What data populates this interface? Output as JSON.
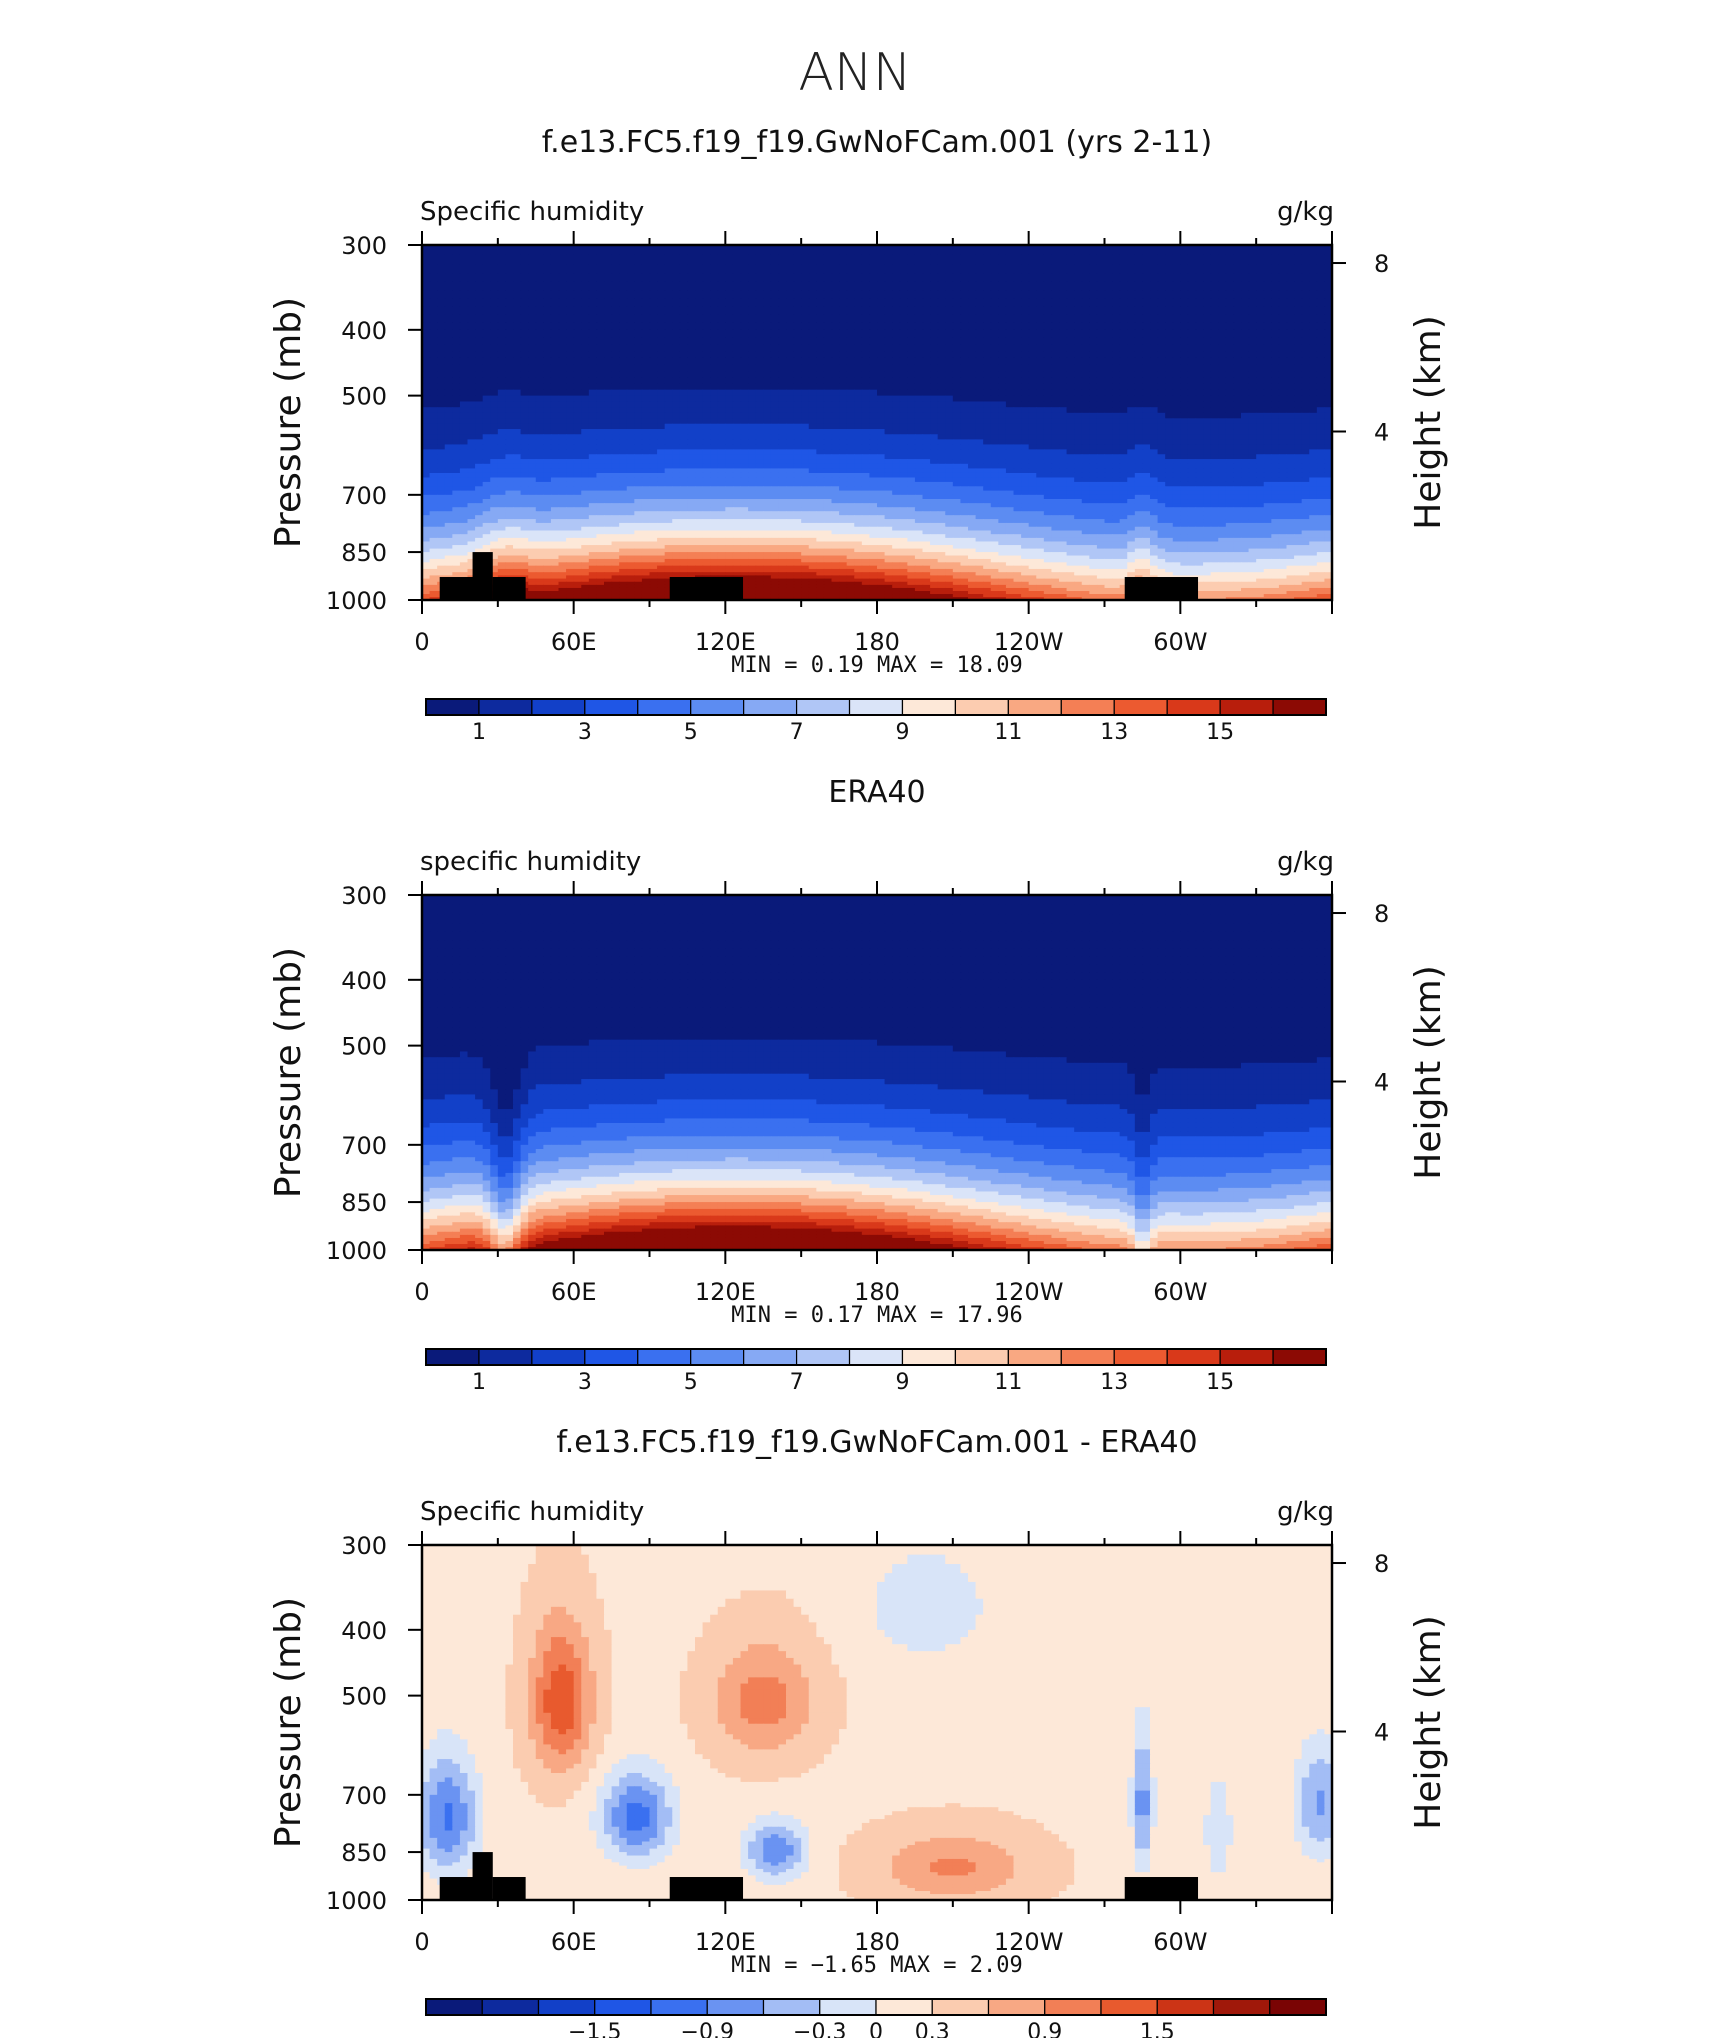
{
  "figure": {
    "season": "ANN"
  },
  "chart_data": [
    {
      "type": "heatmap",
      "title": "f.e13.FC5.f19_f19.GwNoFCam.001 (yrs 2-11)",
      "variable_label": "Specific humidity",
      "units": "g/kg",
      "ylabel": "Pressure (mb)",
      "ylabel_right": "Height (km)",
      "x_ticks": [
        "0",
        "60E",
        "120E",
        "180",
        "120W",
        "60W"
      ],
      "x_tick_positions_deg": [
        0,
        60,
        120,
        180,
        240,
        300
      ],
      "xlim_deg": [
        0,
        360
      ],
      "y_ticks": [
        "300",
        "400",
        "500",
        "700",
        "850",
        "1000"
      ],
      "y_tick_values": [
        300,
        400,
        500,
        700,
        850,
        1000
      ],
      "ylim": [
        300,
        1000
      ],
      "y_right_ticks": [
        "4",
        "8"
      ],
      "y_right_tick_values_km": [
        4,
        8
      ],
      "stats_text": "MIN =    0.19  MAX =   18.09",
      "min": 0.19,
      "max": 18.09,
      "colorbar_levels": [
        0,
        1,
        2,
        3,
        4,
        5,
        6,
        7,
        8,
        9,
        10,
        11,
        12,
        13,
        14,
        15,
        16
      ],
      "colorbar_labels": [
        "1",
        "3",
        "5",
        "7",
        "9",
        "11",
        "13",
        "15"
      ],
      "orography_mask": true
    },
    {
      "type": "heatmap",
      "title": "ERA40",
      "variable_label": "specific humidity",
      "units": "g/kg",
      "ylabel": "Pressure (mb)",
      "ylabel_right": "Height (km)",
      "x_ticks": [
        "0",
        "60E",
        "120E",
        "180",
        "120W",
        "60W"
      ],
      "x_tick_positions_deg": [
        0,
        60,
        120,
        180,
        240,
        300
      ],
      "xlim_deg": [
        0,
        360
      ],
      "y_ticks": [
        "300",
        "400",
        "500",
        "700",
        "850",
        "1000"
      ],
      "y_tick_values": [
        300,
        400,
        500,
        700,
        850,
        1000
      ],
      "ylim": [
        300,
        1000
      ],
      "y_right_ticks": [
        "4",
        "8"
      ],
      "y_right_tick_values_km": [
        4,
        8
      ],
      "stats_text": "MIN =    0.17  MAX =   17.96",
      "min": 0.17,
      "max": 17.96,
      "colorbar_levels": [
        0,
        1,
        2,
        3,
        4,
        5,
        6,
        7,
        8,
        9,
        10,
        11,
        12,
        13,
        14,
        15,
        16
      ],
      "colorbar_labels": [
        "1",
        "3",
        "5",
        "7",
        "9",
        "11",
        "13",
        "15"
      ],
      "orography_mask": false
    },
    {
      "type": "heatmap",
      "title": "f.e13.FC5.f19_f19.GwNoFCam.001 - ERA40",
      "variable_label": "Specific humidity",
      "units": "g/kg",
      "ylabel": "Pressure (mb)",
      "ylabel_right": "Height (km)",
      "x_ticks": [
        "0",
        "60E",
        "120E",
        "180",
        "120W",
        "60W"
      ],
      "x_tick_positions_deg": [
        0,
        60,
        120,
        180,
        240,
        300
      ],
      "xlim_deg": [
        0,
        360
      ],
      "y_ticks": [
        "300",
        "400",
        "500",
        "700",
        "850",
        "1000"
      ],
      "y_tick_values": [
        300,
        400,
        500,
        700,
        850,
        1000
      ],
      "ylim": [
        300,
        1000
      ],
      "y_right_ticks": [
        "4",
        "8"
      ],
      "y_right_tick_values_km": [
        4,
        8
      ],
      "stats_text": "MIN =   −1.65  MAX =    2.09",
      "min": -1.65,
      "max": 2.09,
      "colorbar_levels": [
        -2.1,
        -1.8,
        -1.5,
        -1.2,
        -0.9,
        -0.6,
        -0.3,
        0,
        0.3,
        0.6,
        0.9,
        1.2,
        1.5,
        1.8
      ],
      "colorbar_labels": [
        "−1.5",
        "−0.9",
        "−0.3",
        "0",
        "0.3",
        "0.9",
        "1.5"
      ],
      "orography_mask": true
    }
  ],
  "palette": {
    "abs": [
      "#0a1a7a",
      "#0d2a9e",
      "#1240c8",
      "#1f56e6",
      "#3a70f0",
      "#5c8cf2",
      "#86a9f4",
      "#b0c6f6",
      "#dae4f8",
      "#fde8d8",
      "#fcccb0",
      "#f9a882",
      "#f47f55",
      "#ec5a30",
      "#d9391a",
      "#b81e0c",
      "#8c0a04"
    ],
    "diff": [
      "#0a1a7a",
      "#0d2a9e",
      "#1240c8",
      "#1f56e6",
      "#3a70f0",
      "#6a93f2",
      "#a3bdf5",
      "#d8e4f8",
      "#fde8d8",
      "#fbccb0",
      "#f8a884",
      "#f27f56",
      "#e85a2e",
      "#cc3416",
      "#a0180a",
      "#7a0404"
    ],
    "mask": "#000000"
  }
}
